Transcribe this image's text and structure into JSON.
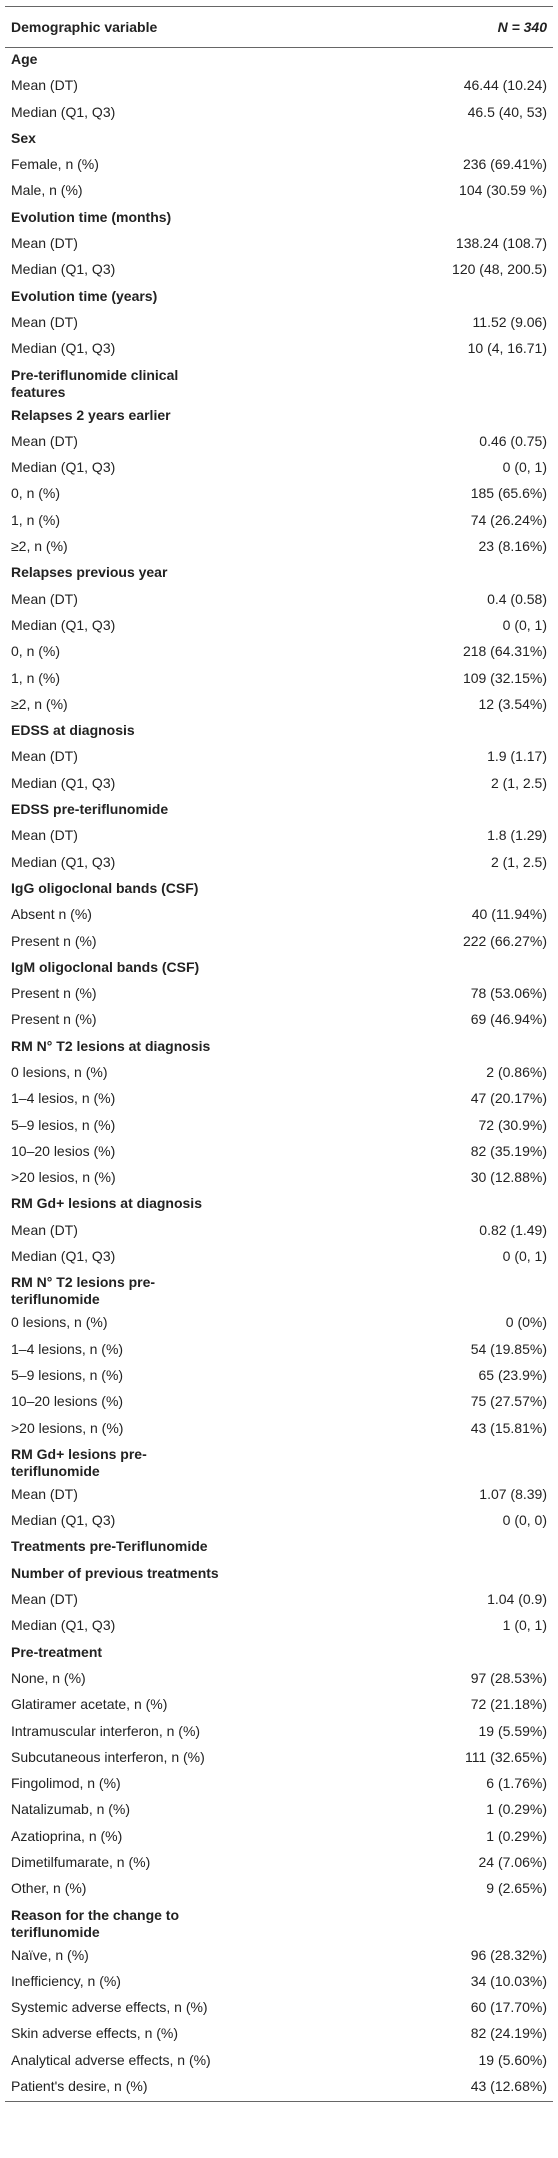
{
  "table": {
    "header": [
      "Demographic variable",
      "N = 340"
    ],
    "rows": [
      [
        "Age"
      ],
      [
        "Mean (DT)",
        "46.44 (10.24)"
      ],
      [
        "Median (Q1, Q3)",
        "46.5 (40, 53)"
      ],
      [
        "Sex"
      ],
      [
        "Female, n (%)",
        "236 (69.41%)"
      ],
      [
        "Male, n (%)",
        "104 (30.59 %)"
      ],
      [
        "Evolution time (months)"
      ],
      [
        "Mean (DT)",
        "138.24 (108.7)"
      ],
      [
        "Median (Q1, Q3)",
        "120 (48, 200.5)"
      ],
      [
        "Evolution time (years)"
      ],
      [
        "Mean (DT)",
        "11.52 (9.06)"
      ],
      [
        "Median (Q1, Q3)",
        "10 (4, 16.71)"
      ],
      [
        "Pre-teriflunomide clinical features"
      ],
      [
        "Relapses 2 years earlier"
      ],
      [
        "Mean (DT)",
        "0.46 (0.75)"
      ],
      [
        "Median (Q1, Q3)",
        "0 (0, 1)"
      ],
      [
        "0, n (%)",
        "185 (65.6%)"
      ],
      [
        "1, n (%)",
        "74 (26.24%)"
      ],
      [
        "≥2, n (%)",
        "23 (8.16%)"
      ],
      [
        "Relapses previous year"
      ],
      [
        "Mean (DT)",
        "0.4 (0.58)"
      ],
      [
        "Median (Q1, Q3)",
        "0 (0, 1)"
      ],
      [
        "0, n (%)",
        "218 (64.31%)"
      ],
      [
        "1, n (%)",
        "109 (32.15%)"
      ],
      [
        "≥2, n (%)",
        "12 (3.54%)"
      ],
      [
        "EDSS at diagnosis"
      ],
      [
        "Mean (DT)",
        "1.9 (1.17)"
      ],
      [
        "Median (Q1, Q3)",
        "2 (1, 2.5)"
      ],
      [
        "EDSS pre-teriflunomide"
      ],
      [
        "Mean (DT)",
        "1.8 (1.29)"
      ],
      [
        "Median (Q1, Q3)",
        "2 (1, 2.5)"
      ],
      [
        "IgG oligoclonal bands (CSF)"
      ],
      [
        "Absent n (%)",
        "40 (11.94%)"
      ],
      [
        "Present n (%)",
        "222 (66.27%)"
      ],
      [
        "IgM oligoclonal bands (CSF)"
      ],
      [
        "Present n (%)",
        "78 (53.06%)"
      ],
      [
        "Present n (%)",
        "69 (46.94%)"
      ],
      [
        "RM N° T2 lesions at diagnosis"
      ],
      [
        "0 lesions, n (%)",
        "2 (0.86%)"
      ],
      [
        "1–4 lesios, n (%)",
        "47 (20.17%)"
      ],
      [
        "5–9 lesios, n (%)",
        "72 (30.9%)"
      ],
      [
        "10–20 lesios (%)",
        "82 (35.19%)"
      ],
      [
        ">20 lesios, n (%)",
        "30 (12.88%)"
      ],
      [
        "RM Gd+ lesions at diagnosis"
      ],
      [
        "Mean (DT)",
        "0.82 (1.49)"
      ],
      [
        "Median (Q1, Q3)",
        "0 (0, 1)"
      ],
      [
        "RM N° T2 lesions pre-teriflunomide"
      ],
      [
        "0 lesions, n (%)",
        "0 (0%)"
      ],
      [
        "1–4 lesions, n (%)",
        "54 (19.85%)"
      ],
      [
        "5–9 lesions, n (%)",
        "65 (23.9%)"
      ],
      [
        "10–20 lesions (%)",
        "75 (27.57%)"
      ],
      [
        ">20 lesions, n (%)",
        "43 (15.81%)"
      ],
      [
        "RM Gd+ lesions pre-teriflunomide"
      ],
      [
        "Mean (DT)",
        "1.07 (8.39)"
      ],
      [
        "Median (Q1, Q3)",
        "0 (0, 0)"
      ],
      [
        "Treatments pre-Teriflunomide"
      ],
      [
        "Number of previous treatments"
      ],
      [
        "Mean (DT)",
        "1.04 (0.9)"
      ],
      [
        "Median (Q1, Q3)",
        "1 (0, 1)"
      ],
      [
        "Pre-treatment"
      ],
      [
        "None, n (%)",
        "97 (28.53%)"
      ],
      [
        "Glatiramer acetate, n (%)",
        "72 (21.18%)"
      ],
      [
        "Intramuscular interferon, n (%)",
        "19 (5.59%)"
      ],
      [
        "Subcutaneous interferon, n (%)",
        "111 (32.65%)"
      ],
      [
        "Fingolimod, n (%)",
        "6 (1.76%)"
      ],
      [
        "Natalizumab, n (%)",
        "1 (0.29%)"
      ],
      [
        "Azatioprina, n (%)",
        "1 (0.29%)"
      ],
      [
        "Dimetilfumarate, n (%)",
        "24 (7.06%)"
      ],
      [
        "Other, n (%)",
        "9 (2.65%)"
      ],
      [
        "Reason for the change to teriflunomide"
      ],
      [
        "Naïve, n (%)",
        "96 (28.32%)"
      ],
      [
        "Inefficiency, n (%)",
        "34 (10.03%)"
      ],
      [
        "Systemic adverse effects, n (%)",
        "60 (17.70%)"
      ],
      [
        "Skin adverse effects, n (%)",
        "82 (24.19%)"
      ],
      [
        "Analytical adverse effects, n (%)",
        "19 (5.60%)"
      ],
      [
        "Patient's desire, n (%)",
        "43 (12.68%)"
      ]
    ]
  }
}
